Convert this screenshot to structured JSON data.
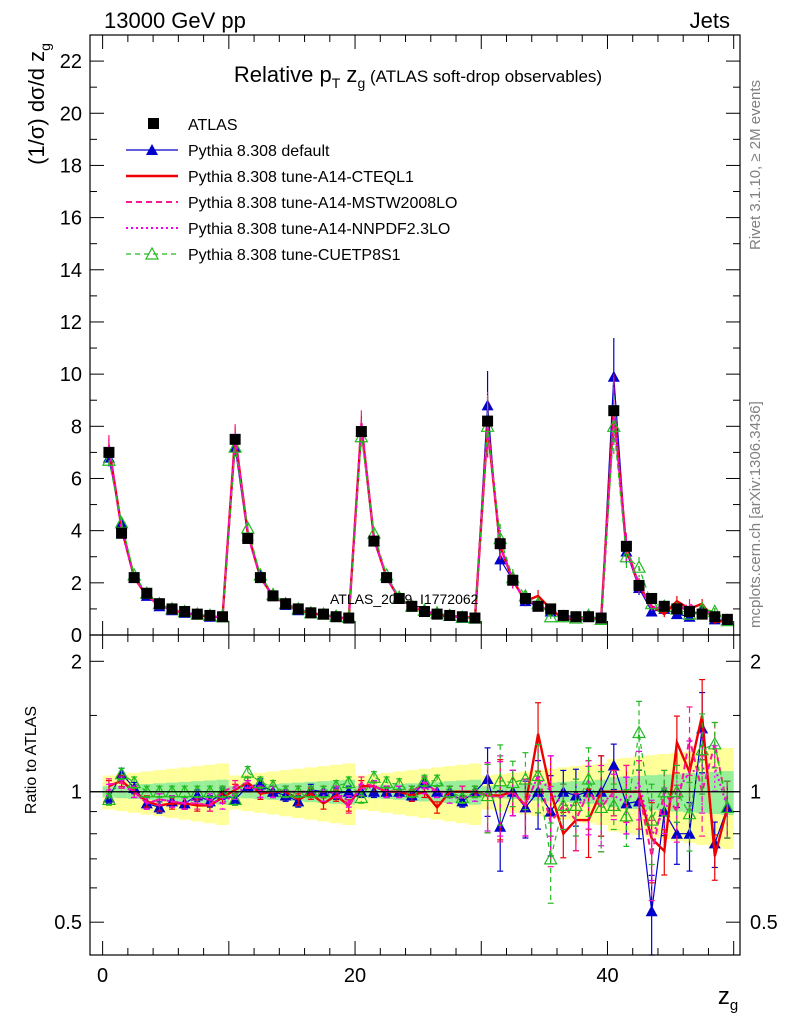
{
  "header": {
    "left": "13000 GeV pp",
    "right": "Jets"
  },
  "side_notes": {
    "rivet": "Rivet 3.1.10, ≥ 2M events",
    "mcplots": "mcplots.cern.ch [arXiv:1306.3436]"
  },
  "watermark": "ATLAS_2019_I1772062",
  "chart_data": [
    {
      "type": "line",
      "title": "Relative p_T z_g (ATLAS soft-drop observables)",
      "ylabel": "(1/σ) dσ/d z_g",
      "xlim": [
        -1,
        50.5
      ],
      "ylim": [
        0,
        23
      ],
      "yticks": [
        0,
        2,
        4,
        6,
        8,
        10,
        12,
        14,
        16,
        18,
        20,
        22
      ],
      "legend_position": "top-left",
      "colors": {
        "ATLAS": "#000000",
        "default": "#0000cc",
        "CTEQL1": "#ee0000",
        "MSTW": "#ff1493",
        "NNPDF": "#ee00ee",
        "CUETP8S1": "#22bb22"
      },
      "series": [
        {
          "name": "ATLAS",
          "style": "data",
          "x": [
            0.5,
            1.5,
            2.5,
            3.5,
            4.5,
            5.5,
            6.5,
            7.5,
            8.5,
            9.5,
            10.5,
            11.5,
            12.5,
            13.5,
            14.5,
            15.5,
            16.5,
            17.5,
            18.5,
            19.5,
            20.5,
            21.5,
            22.5,
            23.5,
            24.5,
            25.5,
            26.5,
            27.5,
            28.5,
            29.5,
            30.5,
            31.5,
            32.5,
            33.5,
            34.5,
            35.5,
            36.5,
            37.5,
            38.5,
            39.5,
            40.5,
            41.5,
            42.5,
            43.5,
            44.5,
            45.5,
            46.5,
            47.5,
            48.5,
            49.5
          ],
          "y": [
            7.0,
            3.9,
            2.2,
            1.6,
            1.2,
            1.0,
            0.9,
            0.8,
            0.75,
            0.7,
            7.5,
            3.7,
            2.2,
            1.5,
            1.2,
            1.0,
            0.85,
            0.8,
            0.7,
            0.65,
            7.8,
            3.6,
            2.2,
            1.4,
            1.1,
            0.9,
            0.8,
            0.75,
            0.7,
            0.65,
            8.2,
            3.5,
            2.1,
            1.4,
            1.1,
            1.0,
            0.75,
            0.7,
            0.7,
            0.65,
            8.6,
            3.4,
            1.9,
            1.4,
            1.1,
            1.0,
            0.9,
            0.8,
            0.7,
            0.6
          ]
        },
        {
          "name": "Pythia 8.308 default",
          "style": "line-tri",
          "x": [
            0.5,
            1.5,
            2.5,
            3.5,
            4.5,
            5.5,
            6.5,
            7.5,
            8.5,
            9.5,
            10.5,
            11.5,
            12.5,
            13.5,
            14.5,
            15.5,
            16.5,
            17.5,
            18.5,
            19.5,
            20.5,
            21.5,
            22.5,
            23.5,
            24.5,
            25.5,
            26.5,
            27.5,
            28.5,
            29.5,
            30.5,
            31.5,
            32.5,
            33.5,
            34.5,
            35.5,
            36.5,
            37.5,
            38.5,
            39.5,
            40.5,
            41.5,
            42.5,
            43.5,
            44.5,
            45.5,
            46.5,
            47.5,
            48.5,
            49.5
          ],
          "y": [
            6.8,
            4.3,
            2.2,
            1.5,
            1.1,
            0.95,
            0.85,
            0.8,
            0.7,
            0.7,
            7.2,
            3.8,
            2.3,
            1.5,
            1.15,
            0.95,
            0.85,
            0.8,
            0.7,
            0.65,
            7.8,
            3.6,
            2.2,
            1.4,
            1.1,
            0.95,
            0.8,
            0.75,
            0.65,
            0.65,
            8.8,
            2.9,
            2.1,
            1.3,
            1.1,
            0.9,
            0.75,
            0.7,
            0.7,
            0.65,
            9.9,
            3.2,
            1.8,
            0.9,
            1.0,
            0.8,
            0.7,
            1.0,
            0.6,
            0.55
          ]
        },
        {
          "name": "Pythia 8.308 tune-A14-CTEQL1",
          "style": "line-solid",
          "x": [
            0.5,
            1.5,
            2.5,
            3.5,
            4.5,
            5.5,
            6.5,
            7.5,
            8.5,
            9.5,
            10.5,
            11.5,
            12.5,
            13.5,
            14.5,
            15.5,
            16.5,
            17.5,
            18.5,
            19.5,
            20.5,
            21.5,
            22.5,
            23.5,
            24.5,
            25.5,
            26.5,
            27.5,
            28.5,
            29.5,
            30.5,
            31.5,
            32.5,
            33.5,
            34.5,
            35.5,
            36.5,
            37.5,
            38.5,
            39.5,
            40.5,
            41.5,
            42.5,
            43.5,
            44.5,
            45.5,
            46.5,
            47.5,
            48.5,
            49.5
          ],
          "y": [
            7.2,
            4.1,
            2.2,
            1.5,
            1.15,
            0.95,
            0.85,
            0.75,
            0.7,
            0.68,
            7.6,
            3.9,
            2.2,
            1.5,
            1.2,
            0.95,
            0.85,
            0.75,
            0.7,
            0.6,
            8.0,
            3.7,
            2.2,
            1.4,
            1.1,
            0.9,
            0.75,
            0.7,
            0.7,
            0.65,
            8.0,
            3.4,
            2.1,
            1.3,
            1.5,
            1.0,
            0.6,
            0.6,
            0.6,
            0.65,
            8.7,
            3.3,
            1.9,
            1.1,
            0.8,
            1.3,
            1.0,
            1.2,
            0.5,
            0.55
          ]
        },
        {
          "name": "Pythia 8.308 tune-A14-MSTW2008LO",
          "style": "line-dash",
          "x": [
            0.5,
            1.5,
            2.5,
            3.5,
            4.5,
            5.5,
            6.5,
            7.5,
            8.5,
            9.5,
            10.5,
            11.5,
            12.5,
            13.5,
            14.5,
            15.5,
            16.5,
            17.5,
            18.5,
            19.5,
            20.5,
            21.5,
            22.5,
            23.5,
            24.5,
            25.5,
            26.5,
            27.5,
            28.5,
            29.5,
            30.5,
            31.5,
            32.5,
            33.5,
            34.5,
            35.5,
            36.5,
            37.5,
            38.5,
            39.5,
            40.5,
            41.5,
            42.5,
            43.5,
            44.5,
            45.5,
            46.5,
            47.5,
            48.5,
            49.5
          ],
          "y": [
            7.3,
            4.1,
            2.2,
            1.5,
            1.15,
            0.95,
            0.85,
            0.75,
            0.7,
            0.7,
            7.7,
            3.9,
            2.2,
            1.5,
            1.2,
            1.0,
            0.85,
            0.8,
            0.7,
            0.6,
            8.2,
            3.7,
            2.2,
            1.4,
            1.1,
            0.95,
            0.8,
            0.75,
            0.7,
            0.65,
            8.0,
            3.4,
            2.1,
            1.3,
            1.2,
            0.85,
            0.7,
            0.6,
            0.7,
            0.6,
            8.6,
            3.4,
            1.9,
            1.0,
            1.1,
            0.9,
            1.2,
            0.8,
            0.9,
            0.55
          ]
        },
        {
          "name": "Pythia 8.308 tune-A14-NNPDF2.3LO",
          "style": "line-dot",
          "x": [
            0.5,
            1.5,
            2.5,
            3.5,
            4.5,
            5.5,
            6.5,
            7.5,
            8.5,
            9.5,
            10.5,
            11.5,
            12.5,
            13.5,
            14.5,
            15.5,
            16.5,
            17.5,
            18.5,
            19.5,
            20.5,
            21.5,
            22.5,
            23.5,
            24.5,
            25.5,
            26.5,
            27.5,
            28.5,
            29.5,
            30.5,
            31.5,
            32.5,
            33.5,
            34.5,
            35.5,
            36.5,
            37.5,
            38.5,
            39.5,
            40.5,
            41.5,
            42.5,
            43.5,
            44.5,
            45.5,
            46.5,
            47.5,
            48.5,
            49.5
          ],
          "y": [
            7.1,
            4.0,
            2.2,
            1.5,
            1.15,
            0.95,
            0.85,
            0.78,
            0.72,
            0.66,
            7.4,
            3.8,
            2.2,
            1.5,
            1.2,
            1.0,
            0.85,
            0.78,
            0.7,
            0.62,
            7.9,
            3.7,
            2.2,
            1.4,
            1.1,
            0.92,
            0.8,
            0.73,
            0.68,
            0.64,
            8.1,
            3.5,
            2.1,
            1.3,
            1.2,
            1.0,
            0.7,
            0.65,
            0.68,
            0.62,
            8.4,
            3.2,
            2.0,
            1.1,
            1.0,
            1.0,
            1.0,
            0.9,
            0.8,
            0.55
          ]
        },
        {
          "name": "Pythia 8.308 tune-CUETP8S1",
          "style": "line-dash-open-tri",
          "x": [
            0.5,
            1.5,
            2.5,
            3.5,
            4.5,
            5.5,
            6.5,
            7.5,
            8.5,
            9.5,
            10.5,
            11.5,
            12.5,
            13.5,
            14.5,
            15.5,
            16.5,
            17.5,
            18.5,
            19.5,
            20.5,
            21.5,
            22.5,
            23.5,
            24.5,
            25.5,
            26.5,
            27.5,
            28.5,
            29.5,
            30.5,
            31.5,
            32.5,
            33.5,
            34.5,
            35.5,
            36.5,
            37.5,
            38.5,
            39.5,
            40.5,
            41.5,
            42.5,
            43.5,
            44.5,
            45.5,
            46.5,
            47.5,
            48.5,
            49.5
          ],
          "y": [
            6.7,
            4.3,
            2.3,
            1.6,
            1.2,
            1.0,
            0.9,
            0.8,
            0.75,
            0.7,
            7.2,
            4.1,
            2.3,
            1.55,
            1.2,
            1.0,
            0.85,
            0.8,
            0.72,
            0.68,
            7.6,
            3.9,
            2.3,
            1.45,
            1.1,
            0.95,
            0.85,
            0.75,
            0.68,
            0.65,
            8.0,
            3.7,
            2.2,
            1.5,
            1.2,
            0.7,
            0.7,
            0.65,
            0.75,
            0.6,
            8.0,
            3.0,
            2.6,
            1.2,
            1.1,
            1.0,
            0.8,
            1.0,
            0.9,
            0.55
          ]
        }
      ]
    },
    {
      "type": "line",
      "ylabel": "Ratio to ATLAS",
      "xlabel": "z_g",
      "xlim": [
        -1,
        50.5
      ],
      "ylim": [
        0.42,
        2.3
      ],
      "yscale": "log",
      "yticks": [
        0.5,
        1,
        2
      ],
      "xticks": [
        0,
        20,
        40
      ],
      "reference": 1,
      "series": [
        {
          "name": "Pythia 8.308 default",
          "y": [
            0.97,
            1.1,
            1.02,
            0.94,
            0.92,
            0.95,
            0.94,
            0.98,
            0.95,
            0.99,
            0.96,
            1.03,
            1.04,
            1.0,
            0.98,
            0.95,
            1.01,
            1.0,
            0.99,
            1.0,
            1.0,
            1.0,
            1.0,
            1.0,
            0.98,
            1.05,
            1.0,
            1.0,
            0.95,
            1.0,
            1.07,
            0.83,
            1.0,
            0.92,
            1.0,
            0.9,
            1.0,
            0.98,
            1.0,
            1.0,
            1.15,
            0.94,
            0.95,
            0.53,
            0.9,
            0.8,
            0.8,
            1.4,
            0.76,
            0.92
          ]
        },
        {
          "name": "Pythia 8.308 tune-A14-CTEQL1",
          "y": [
            1.03,
            1.06,
            1.0,
            0.95,
            0.93,
            0.94,
            0.94,
            0.93,
            0.93,
            0.97,
            1.01,
            1.05,
            0.99,
            1.0,
            1.0,
            0.96,
            0.99,
            0.94,
            0.98,
            0.93,
            1.03,
            1.03,
            1.0,
            1.0,
            0.98,
            1.0,
            0.92,
            1.0,
            1.0,
            1.0,
            0.98,
            0.98,
            1.0,
            0.93,
            1.36,
            1.0,
            0.8,
            0.86,
            0.86,
            1.0,
            1.0,
            1.0,
            1.0,
            0.78,
            0.73,
            1.3,
            1.11,
            1.5,
            0.71,
            0.92
          ]
        },
        {
          "name": "Pythia 8.308 tune-A14-MSTW2008LO",
          "y": [
            1.04,
            1.05,
            1.0,
            0.94,
            0.96,
            0.95,
            0.94,
            0.94,
            0.93,
            1.0,
            1.03,
            1.05,
            1.0,
            1.0,
            1.0,
            1.0,
            1.0,
            1.0,
            1.0,
            0.92,
            1.05,
            1.03,
            1.0,
            1.0,
            1.0,
            1.05,
            1.0,
            1.0,
            1.0,
            1.0,
            0.98,
            0.97,
            1.0,
            0.93,
            1.09,
            0.85,
            0.93,
            0.86,
            1.0,
            0.92,
            1.0,
            1.0,
            1.0,
            0.71,
            1.0,
            0.9,
            1.33,
            1.0,
            1.29,
            0.92
          ]
        },
        {
          "name": "Pythia 8.308 tune-A14-NNPDF2.3LO",
          "y": [
            1.01,
            1.03,
            1.0,
            0.94,
            0.96,
            0.95,
            0.94,
            0.97,
            0.96,
            0.94,
            0.99,
            1.03,
            1.0,
            1.0,
            1.0,
            1.0,
            1.0,
            0.98,
            1.0,
            0.95,
            1.01,
            1.03,
            1.0,
            1.0,
            1.0,
            1.02,
            1.0,
            0.97,
            0.97,
            0.98,
            0.99,
            1.0,
            1.0,
            0.93,
            1.09,
            1.0,
            0.93,
            0.93,
            0.97,
            0.95,
            0.98,
            0.94,
            1.05,
            0.79,
            0.91,
            1.0,
            1.11,
            1.13,
            1.14,
            0.92
          ]
        },
        {
          "name": "Pythia 8.308 tune-CUETP8S1",
          "y": [
            0.96,
            1.1,
            1.05,
            1.0,
            1.0,
            1.0,
            1.0,
            1.0,
            1.0,
            1.0,
            0.96,
            1.11,
            1.05,
            1.03,
            1.0,
            1.0,
            1.0,
            1.0,
            1.03,
            1.05,
            0.97,
            1.08,
            1.05,
            1.04,
            1.0,
            1.06,
            1.06,
            1.0,
            0.97,
            1.0,
            0.98,
            1.06,
            1.05,
            1.07,
            1.09,
            0.7,
            0.93,
            0.93,
            1.07,
            0.92,
            0.93,
            0.88,
            1.37,
            0.86,
            1.0,
            1.0,
            0.89,
            1.25,
            1.29,
            0.92
          ]
        }
      ]
    }
  ],
  "legend": [
    {
      "label": "ATLAS",
      "key": "ATLAS"
    },
    {
      "label": "Pythia 8.308 default",
      "key": "default"
    },
    {
      "label": "Pythia 8.308 tune-A14-CTEQL1",
      "key": "CTEQL1"
    },
    {
      "label": "Pythia 8.308 tune-A14-MSTW2008LO",
      "key": "MSTW"
    },
    {
      "label": "Pythia 8.308 tune-A14-NNPDF2.3LO",
      "key": "NNPDF"
    },
    {
      "label": "Pythia 8.308 tune-CUETP8S1",
      "key": "CUETP8S1"
    }
  ]
}
